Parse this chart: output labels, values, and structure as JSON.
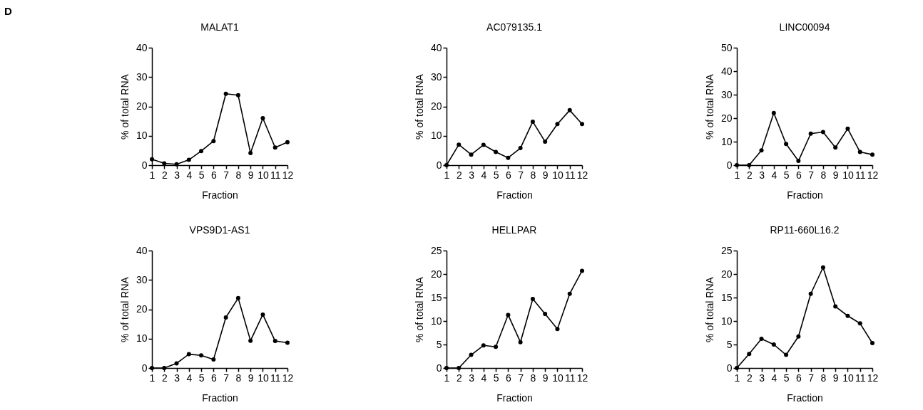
{
  "chart_data": [
    {
      "type": "line",
      "title": "MALAT1",
      "xlabel": "Fraction",
      "ylabel": "% of total RNA",
      "annotations": [
        "D"
      ],
      "x": [
        1,
        2,
        3,
        4,
        5,
        6,
        7,
        8,
        9,
        10,
        11,
        12
      ],
      "xlim": [
        1,
        12
      ],
      "xticks": [
        1,
        2,
        3,
        4,
        5,
        6,
        7,
        8,
        9,
        10,
        11,
        12
      ],
      "ylim": [
        0,
        40
      ],
      "yticks": [
        0,
        10,
        20,
        30,
        40
      ],
      "marker": "circle",
      "series": [
        {
          "color": "#000000",
          "values": [
            2,
            0.6,
            0.3,
            1.8,
            4.8,
            8.2,
            24.3,
            23.8,
            4.1,
            16,
            6,
            7.8
          ]
        }
      ]
    },
    {
      "type": "line",
      "title": "AC079135.1",
      "xlabel": "Fraction",
      "ylabel": "% of total RNA",
      "x": [
        1,
        2,
        3,
        4,
        5,
        6,
        7,
        8,
        9,
        10,
        11,
        12
      ],
      "xlim": [
        1,
        12
      ],
      "xticks": [
        1,
        2,
        3,
        4,
        5,
        6,
        7,
        8,
        9,
        10,
        11,
        12
      ],
      "ylim": [
        0,
        40
      ],
      "yticks": [
        0,
        10,
        20,
        30,
        40
      ],
      "marker": "circle",
      "series": [
        {
          "color": "#000000",
          "values": [
            0,
            7,
            3.6,
            6.9,
            4.5,
            2.5,
            5.8,
            14.8,
            8,
            14,
            18.7,
            14
          ]
        }
      ]
    },
    {
      "type": "line",
      "title": "LINC00094",
      "xlabel": "Fraction",
      "ylabel": "% of total RNA",
      "x": [
        1,
        2,
        3,
        4,
        5,
        6,
        7,
        8,
        9,
        10,
        11,
        12
      ],
      "xlim": [
        1,
        12
      ],
      "xticks": [
        1,
        2,
        3,
        4,
        5,
        6,
        7,
        8,
        9,
        10,
        11,
        12
      ],
      "ylim": [
        0,
        50
      ],
      "yticks": [
        0,
        10,
        20,
        30,
        40,
        50
      ],
      "marker": "circle",
      "series": [
        {
          "color": "#000000",
          "values": [
            0,
            0,
            6.3,
            22.2,
            9,
            1.8,
            13.4,
            14.1,
            7.5,
            15.5,
            5.6,
            4.5
          ]
        }
      ]
    },
    {
      "type": "line",
      "title": "VPS9D1-AS1",
      "xlabel": "Fraction",
      "ylabel": "% of total RNA",
      "x": [
        1,
        2,
        3,
        4,
        5,
        6,
        7,
        8,
        9,
        10,
        11,
        12
      ],
      "xlim": [
        1,
        12
      ],
      "xticks": [
        1,
        2,
        3,
        4,
        5,
        6,
        7,
        8,
        9,
        10,
        11,
        12
      ],
      "ylim": [
        0,
        40
      ],
      "yticks": [
        0,
        10,
        20,
        30,
        40
      ],
      "marker": "circle",
      "series": [
        {
          "color": "#000000",
          "values": [
            0,
            0,
            1.6,
            4.7,
            4.3,
            2.9,
            17.2,
            23.8,
            9.3,
            18.2,
            9.2,
            8.6
          ]
        }
      ]
    },
    {
      "type": "line",
      "title": "HELLPAR",
      "xlabel": "Fraction",
      "ylabel": "% of total RNA",
      "x": [
        1,
        2,
        3,
        4,
        5,
        6,
        7,
        8,
        9,
        10,
        11,
        12
      ],
      "xlim": [
        1,
        12
      ],
      "xticks": [
        1,
        2,
        3,
        4,
        5,
        6,
        7,
        8,
        9,
        10,
        11,
        12
      ],
      "ylim": [
        0,
        25
      ],
      "yticks": [
        0,
        5,
        10,
        15,
        20,
        25
      ],
      "marker": "circle",
      "series": [
        {
          "color": "#000000",
          "values": [
            0,
            0,
            2.8,
            4.8,
            4.5,
            11.3,
            5.5,
            14.7,
            11.5,
            8.3,
            15.8,
            20.7
          ]
        }
      ]
    },
    {
      "type": "line",
      "title": "RP11-660L16.2",
      "xlabel": "Fraction",
      "ylabel": "% of total RNA",
      "x": [
        1,
        2,
        3,
        4,
        5,
        6,
        7,
        8,
        9,
        10,
        11,
        12
      ],
      "xlim": [
        1,
        12
      ],
      "xticks": [
        1,
        2,
        3,
        4,
        5,
        6,
        7,
        8,
        9,
        10,
        11,
        12
      ],
      "ylim": [
        0,
        25
      ],
      "yticks": [
        0,
        5,
        10,
        15,
        20,
        25
      ],
      "marker": "circle",
      "series": [
        {
          "color": "#000000",
          "values": [
            0,
            3,
            6.2,
            5,
            2.8,
            6.7,
            15.8,
            21.4,
            13.1,
            11.1,
            9.5,
            5.3
          ]
        }
      ]
    }
  ]
}
